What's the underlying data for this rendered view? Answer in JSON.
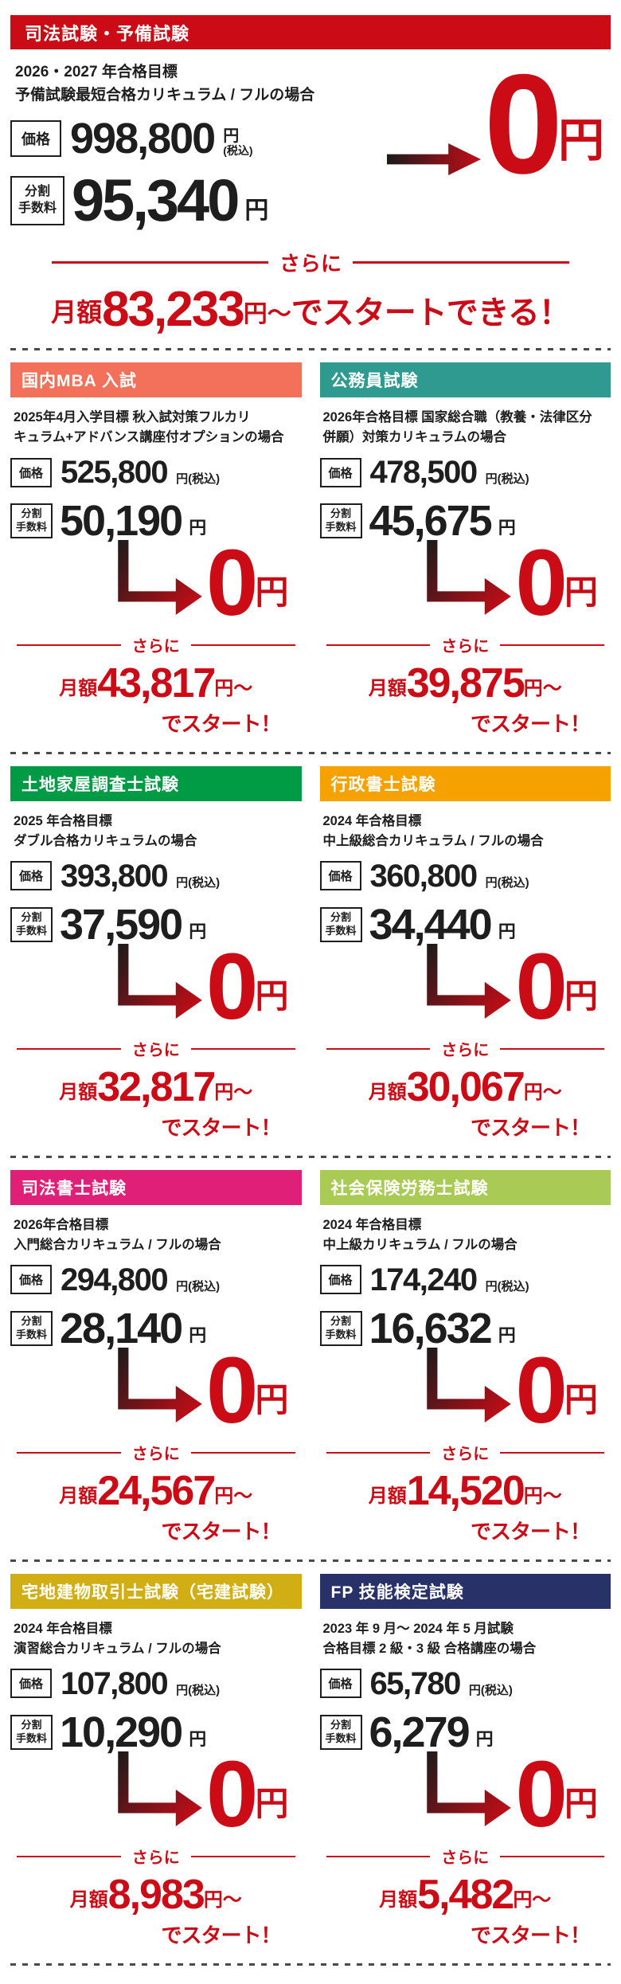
{
  "page": {
    "accent": "#CB0B15",
    "text_color": "#1E1E1E",
    "background": "#FFFFFF"
  },
  "cards": [
    {
      "title": "司法試験・予備試験",
      "header_color": "#CB0B15",
      "target_lines": [
        "2026・2027 年合格目標",
        "予備試験最短合格カリキュラム / フルの場合"
      ],
      "price_label": "価格",
      "price_value": "998,800",
      "price_unit": "円",
      "price_tax_note": "(税込)",
      "installment_label_line1": "分割",
      "installment_label_line2": "手数料",
      "installment_value": "95,340",
      "installment_unit": "円",
      "zero_value": "0",
      "zero_unit": "円",
      "more_label": "さらに",
      "monthly_label": "月額",
      "monthly_value": "83,233",
      "monthly_unit": "円～",
      "monthly_cta": "でスタートできる！"
    },
    {
      "title": "国内MBA 入試",
      "header_color": "#F3715A",
      "target_lines": [
        "2025年4月入学目標 秋入試対策フルカリ",
        "キュラム+アドバンス講座付オプションの場合"
      ],
      "price_label": "価格",
      "price_value": "525,800",
      "price_unit": "円",
      "price_tax_note": "(税込)",
      "installment_label_line1": "分割",
      "installment_label_line2": "手数料",
      "installment_value": "50,190",
      "installment_unit": "円",
      "zero_value": "0",
      "zero_unit": "円",
      "more_label": "さらに",
      "monthly_label": "月額",
      "monthly_value": "43,817",
      "monthly_unit": "円～",
      "monthly_cta": "でスタート！"
    },
    {
      "title": "公務員試験",
      "header_color": "#2F9A90",
      "target_lines": [
        "2026年合格目標 国家総合職（教養・法律区分",
        "併願）対策カリキュラムの場合"
      ],
      "price_label": "価格",
      "price_value": "478,500",
      "price_unit": "円",
      "price_tax_note": "(税込)",
      "installment_label_line1": "分割",
      "installment_label_line2": "手数料",
      "installment_value": "45,675",
      "installment_unit": "円",
      "zero_value": "0",
      "zero_unit": "円",
      "more_label": "さらに",
      "monthly_label": "月額",
      "monthly_value": "39,875",
      "monthly_unit": "円～",
      "monthly_cta": "でスタート！"
    },
    {
      "title": "土地家屋調査士試験",
      "header_color": "#009B44",
      "target_lines": [
        "2025 年合格目標",
        "ダブル合格カリキュラムの場合"
      ],
      "price_label": "価格",
      "price_value": "393,800",
      "price_unit": "円",
      "price_tax_note": "(税込)",
      "installment_label_line1": "分割",
      "installment_label_line2": "手数料",
      "installment_value": "37,590",
      "installment_unit": "円",
      "zero_value": "0",
      "zero_unit": "円",
      "more_label": "さらに",
      "monthly_label": "月額",
      "monthly_value": "32,817",
      "monthly_unit": "円～",
      "monthly_cta": "でスタート！"
    },
    {
      "title": "行政書士試験",
      "header_color": "#F5A100",
      "target_lines": [
        "2024 年合格目標",
        "中上級総合カリキュラム / フルの場合"
      ],
      "price_label": "価格",
      "price_value": "360,800",
      "price_unit": "円",
      "price_tax_note": "(税込)",
      "installment_label_line1": "分割",
      "installment_label_line2": "手数料",
      "installment_value": "34,440",
      "installment_unit": "円",
      "zero_value": "0",
      "zero_unit": "円",
      "more_label": "さらに",
      "monthly_label": "月額",
      "monthly_value": "30,067",
      "monthly_unit": "円～",
      "monthly_cta": "でスタート！"
    },
    {
      "title": "司法書士試験",
      "header_color": "#E01F78",
      "target_lines": [
        "2026年合格目標",
        "入門総合カリキュラム / フルの場合"
      ],
      "price_label": "価格",
      "price_value": "294,800",
      "price_unit": "円",
      "price_tax_note": "(税込)",
      "installment_label_line1": "分割",
      "installment_label_line2": "手数料",
      "installment_value": "28,140",
      "installment_unit": "円",
      "zero_value": "0",
      "zero_unit": "円",
      "more_label": "さらに",
      "monthly_label": "月額",
      "monthly_value": "24,567",
      "monthly_unit": "円～",
      "monthly_cta": "でスタート！"
    },
    {
      "title": "社会保険労務士試験",
      "header_color": "#A9CB55",
      "target_lines": [
        "2024 年合格目標",
        "中上級カリキュラム / フルの場合"
      ],
      "price_label": "価格",
      "price_value": "174,240",
      "price_unit": "円",
      "price_tax_note": "(税込)",
      "installment_label_line1": "分割",
      "installment_label_line2": "手数料",
      "installment_value": "16,632",
      "installment_unit": "円",
      "zero_value": "0",
      "zero_unit": "円",
      "more_label": "さらに",
      "monthly_label": "月額",
      "monthly_value": "14,520",
      "monthly_unit": "円～",
      "monthly_cta": "でスタート！"
    },
    {
      "title": "宅地建物取引士試験（宅建試験）",
      "header_color": "#D1AE14",
      "target_lines": [
        "2024 年合格目標",
        "演習総合カリキュラム / フルの場合"
      ],
      "price_label": "価格",
      "price_value": "107,800",
      "price_unit": "円",
      "price_tax_note": "(税込)",
      "installment_label_line1": "分割",
      "installment_label_line2": "手数料",
      "installment_value": "10,290",
      "installment_unit": "円",
      "zero_value": "0",
      "zero_unit": "円",
      "more_label": "さらに",
      "monthly_label": "月額",
      "monthly_value": "8,983",
      "monthly_unit": "円～",
      "monthly_cta": "でスタート！"
    },
    {
      "title": "FP 技能検定試験",
      "header_color": "#293169",
      "target_lines": [
        "2023 年 9 月～ 2024 年 5 月試験",
        "合格目標 2 級・3 級 合格講座の場合"
      ],
      "price_label": "価格",
      "price_value": "65,780",
      "price_unit": "円",
      "price_tax_note": "(税込)",
      "installment_label_line1": "分割",
      "installment_label_line2": "手数料",
      "installment_value": "6,279",
      "installment_unit": "円",
      "zero_value": "0",
      "zero_unit": "円",
      "more_label": "さらに",
      "monthly_label": "月額",
      "monthly_value": "5,482",
      "monthly_unit": "円～",
      "monthly_cta": "でスタート！"
    }
  ]
}
